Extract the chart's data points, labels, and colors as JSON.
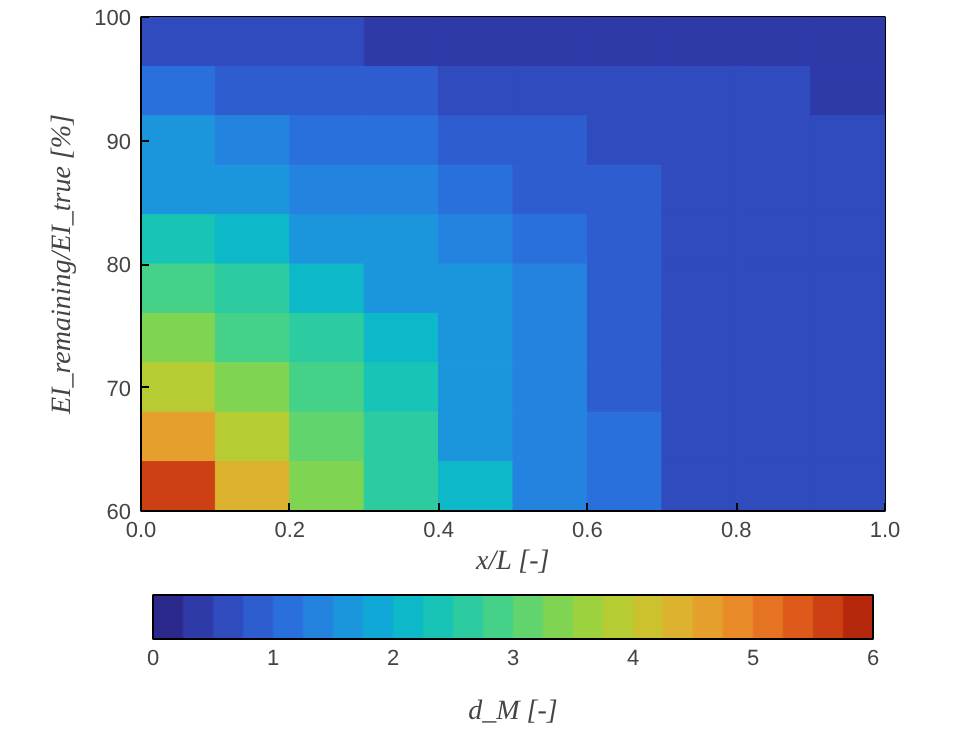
{
  "chart_data": {
    "type": "heatmap",
    "xlabel": "x/L [-]",
    "ylabel": "EI_remaining/EI_true [%]",
    "clabel": "d_M [-]",
    "x": [
      0.05,
      0.15,
      0.25,
      0.35,
      0.45,
      0.55,
      0.65,
      0.75,
      0.85,
      0.95
    ],
    "y": [
      98,
      94,
      90,
      86,
      82,
      78,
      74,
      70,
      66,
      62
    ],
    "cells": [
      [
        0.5,
        0.5,
        0.5,
        0.25,
        0.25,
        0.25,
        0.25,
        0.25,
        0.25,
        0.25
      ],
      [
        1.0,
        0.75,
        0.75,
        0.75,
        0.5,
        0.5,
        0.5,
        0.5,
        0.5,
        0.25
      ],
      [
        1.5,
        1.25,
        1.0,
        1.0,
        0.75,
        0.75,
        0.5,
        0.5,
        0.5,
        0.5
      ],
      [
        1.75,
        1.5,
        1.25,
        1.25,
        1.0,
        0.75,
        0.75,
        0.5,
        0.5,
        0.5
      ],
      [
        2.25,
        2.0,
        1.75,
        1.5,
        1.25,
        1.0,
        0.75,
        0.5,
        0.5,
        0.5
      ],
      [
        2.75,
        2.5,
        2.0,
        1.75,
        1.5,
        1.25,
        0.75,
        0.5,
        0.5,
        0.5
      ],
      [
        3.25,
        2.75,
        2.5,
        2.0,
        1.5,
        1.25,
        0.75,
        0.5,
        0.5,
        0.5
      ],
      [
        3.75,
        3.25,
        2.75,
        2.25,
        1.75,
        1.25,
        0.75,
        0.5,
        0.5,
        0.5
      ],
      [
        4.5,
        3.75,
        3.0,
        2.5,
        1.75,
        1.25,
        1.0,
        0.5,
        0.5,
        0.5
      ],
      [
        5.5,
        4.25,
        3.25,
        2.5,
        2.0,
        1.25,
        1.0,
        0.5,
        0.5,
        0.5
      ]
    ],
    "colors": [
      "#2b2a8c",
      "#2d3aa8",
      "#2f4bbd",
      "#2e5dd0",
      "#2a70dc",
      "#2583e0",
      "#1b96dd",
      "#10a8d6",
      "#0db8c8",
      "#17c4b5",
      "#2ccca0",
      "#45d188",
      "#62d46e",
      "#7fd552",
      "#9cd23d",
      "#b6cc32",
      "#ccc12f",
      "#dcb22e",
      "#e59f2c",
      "#e98a28",
      "#e67322",
      "#dd5a1b",
      "#cc4013",
      "#b5280c"
    ],
    "xlim": [
      0,
      1
    ],
    "xticks": [
      {
        "value": 0,
        "label": "0.0"
      },
      0.2,
      0.4,
      0.6,
      0.8,
      {
        "value": 1,
        "label": "1.0"
      }
    ],
    "ylim": [
      60,
      100
    ],
    "yticks": [
      60,
      70,
      80,
      90,
      100
    ],
    "clim": [
      0,
      6
    ],
    "cticks": [
      0,
      1,
      2,
      3,
      4,
      5,
      6
    ]
  }
}
